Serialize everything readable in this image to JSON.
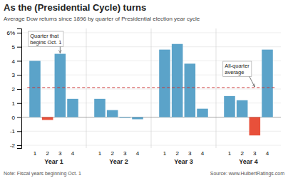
{
  "chart_data": {
    "type": "bar",
    "title": "As the (Presidential Cycle) turns",
    "subtitle": "Average Dow returns since 1896 by quarter of Presidential election year cycle",
    "note": "Note: Fiscal years beginning Oct. 1",
    "source": "Source: www.HulbertRatings.com",
    "categories": [
      "Year 1",
      "Year 2",
      "Year 3",
      "Year 4"
    ],
    "quarters": [
      1,
      2,
      3,
      4
    ],
    "values": [
      [
        4.0,
        -0.2,
        4.5,
        1.3
      ],
      [
        1.3,
        0.5,
        -0.05,
        -0.15
      ],
      [
        4.8,
        5.2,
        3.8,
        0.6
      ],
      [
        1.5,
        1.2,
        -1.3,
        4.8
      ]
    ],
    "colors": [
      [
        "#5ba3c9",
        "#e8503a",
        "#5ba3c9",
        "#5ba3c9"
      ],
      [
        "#5ba3c9",
        "#5ba3c9",
        "#5ba3c9",
        "#5ba3c9"
      ],
      [
        "#5ba3c9",
        "#5ba3c9",
        "#5ba3c9",
        "#5ba3c9"
      ],
      [
        "#5ba3c9",
        "#5ba3c9",
        "#e8503a",
        "#5ba3c9"
      ]
    ],
    "reference_line": {
      "value": 2.1,
      "color": "#cc3333",
      "line_style": "dashed"
    },
    "annotations": [
      "Quarter that\nbegins Oct. 1",
      "All-quarter\naverage"
    ],
    "ylim": [
      -2.2,
      6.3
    ],
    "yticks": [
      -2,
      -1,
      0,
      1,
      2,
      3,
      4,
      5,
      {
        "value": 6,
        "label": "6%"
      }
    ],
    "grid": true
  }
}
